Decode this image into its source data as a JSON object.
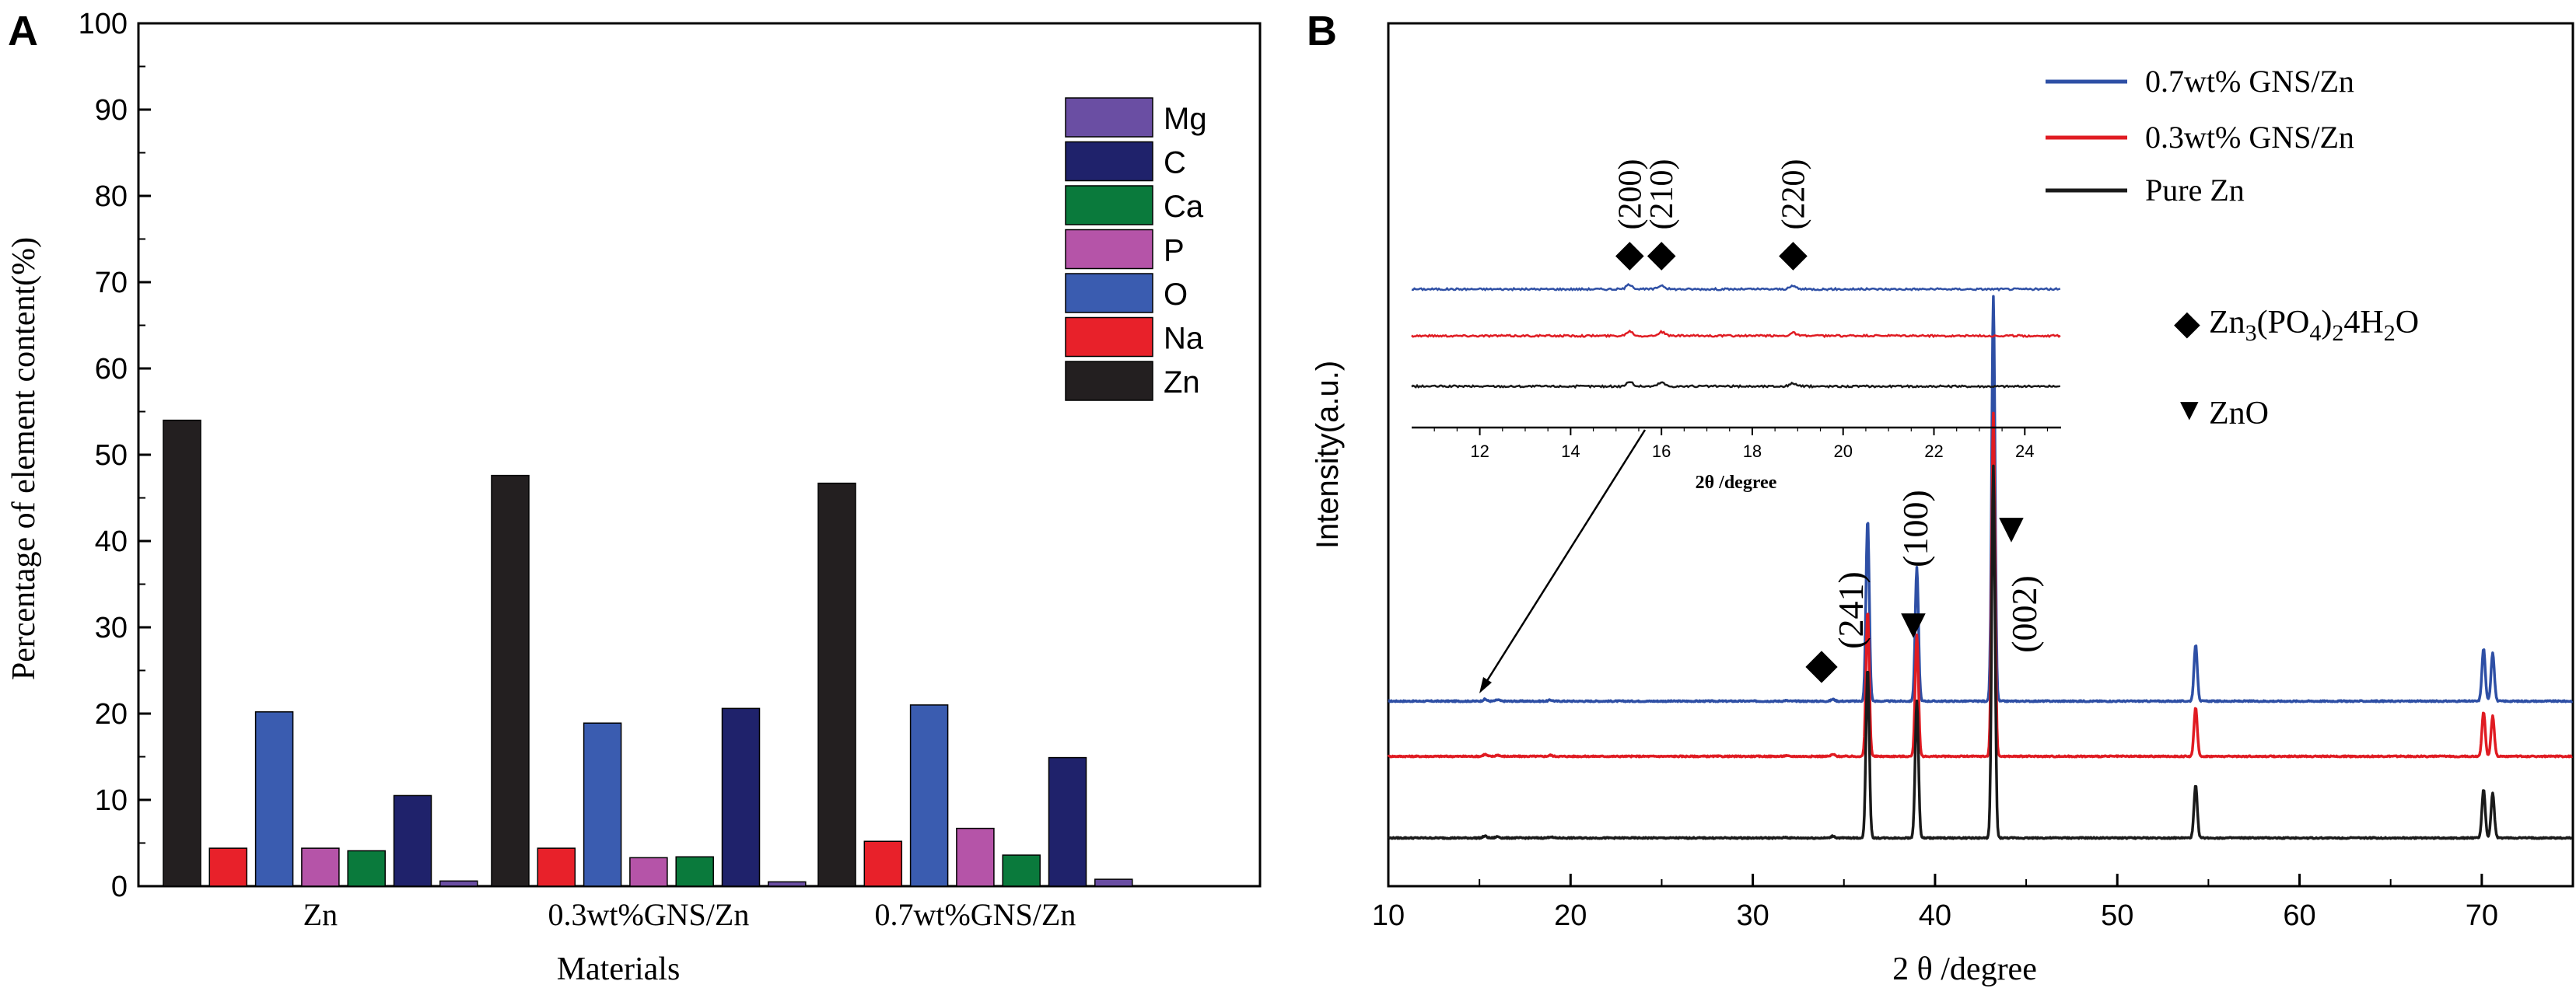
{
  "colors": {
    "Mg": "#6a4ea3",
    "C": "#1f226b",
    "Ca": "#0a7a3c",
    "P": "#b554a8",
    "O": "#3a5cb0",
    "Na": "#e8212a",
    "Zn": "#231f20",
    "blue_trace": "#2e4fa5",
    "red_trace": "#e01b22",
    "black_trace": "#1a1a1a"
  },
  "panel_a": {
    "label": "A",
    "chart_data": {
      "type": "bar",
      "title": "",
      "xlabel": "Materials",
      "ylabel": "Percentage of element content(%)",
      "ylim": [
        0,
        100
      ],
      "yticks": [
        "0",
        "10",
        "20",
        "30",
        "40",
        "50",
        "60",
        "70",
        "80",
        "90",
        "100"
      ],
      "categories": [
        "Zn",
        "0.3wt%GNS/Zn",
        "0.7wt%GNS/Zn"
      ],
      "series": [
        {
          "name": "Zn",
          "values": [
            54.0,
            47.6,
            46.7
          ]
        },
        {
          "name": "Na",
          "values": [
            4.4,
            4.4,
            5.2
          ]
        },
        {
          "name": "O",
          "values": [
            20.2,
            18.9,
            21.0
          ]
        },
        {
          "name": "P",
          "values": [
            4.4,
            3.3,
            6.7
          ]
        },
        {
          "name": "Ca",
          "values": [
            4.1,
            3.4,
            3.6
          ]
        },
        {
          "name": "C",
          "values": [
            10.5,
            20.6,
            14.9
          ]
        },
        {
          "name": "Mg",
          "values": [
            0.6,
            0.5,
            0.8
          ]
        }
      ],
      "legend": [
        "Mg",
        "C",
        "Ca",
        "P",
        "O",
        "Na",
        "Zn"
      ]
    }
  },
  "panel_b": {
    "label": "B",
    "chart_data": {
      "type": "line",
      "xlabel": "2 θ /degree",
      "ylabel": "Intensity(a.u.)",
      "xlim": [
        10,
        75
      ],
      "xticks": [
        "10",
        "20",
        "30",
        "40",
        "50",
        "60",
        "70"
      ],
      "legend": [
        "0.7wt% GNS/Zn",
        "0.3wt% GNS/Zn",
        "Pure Zn"
      ],
      "peaks_2theta": [
        36.3,
        39.0,
        43.2,
        54.3,
        70.1,
        70.6
      ],
      "series": [
        {
          "name": "0.7wt% GNS/Zn",
          "peak_heights": [
            45,
            33,
            100,
            14,
            13,
            12
          ]
        },
        {
          "name": "0.3wt% GNS/Zn",
          "peak_heights": [
            36,
            30,
            85,
            12,
            11,
            10
          ]
        },
        {
          "name": "Pure Zn",
          "peak_heights": [
            42,
            34,
            92,
            13,
            12,
            11
          ]
        }
      ],
      "annotations": {
        "zn3_marker": "◆",
        "zn3_prefix": "Zn",
        "zn3_sub1": "3",
        "zn3_mid": "(PO",
        "zn3_sub2": "4",
        "zn3_paren": ")",
        "zn3_sub3": "2",
        "zn3_tail1": "4H",
        "zn3_sub4": "2",
        "zn3_tail2": "O",
        "zno_marker": "▼",
        "zno_label": "ZnO",
        "peak_241": "(241)",
        "peak_100": "(100)",
        "peak_002": "(002)"
      },
      "inset": {
        "xlabel": "2θ /degree",
        "xlim": [
          10.5,
          24.8
        ],
        "xticks": [
          "12",
          "14",
          "16",
          "18",
          "20",
          "22",
          "24"
        ],
        "peak_labels": [
          "(200)",
          "(210)",
          "(220)"
        ],
        "peaks_2theta": [
          15.3,
          16.0,
          18.9
        ]
      }
    }
  }
}
